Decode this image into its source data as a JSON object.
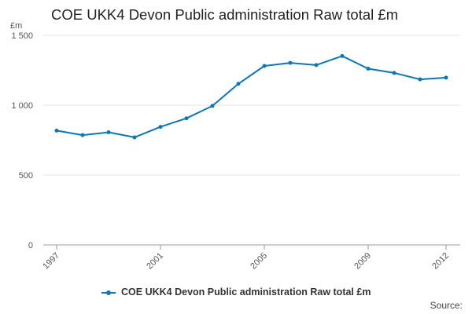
{
  "chart_data": {
    "type": "line",
    "title": "COE UKK4 Devon Public administration Raw total £m",
    "ylabel": "£m",
    "ylim": [
      0,
      1500
    ],
    "yticks": [
      "0",
      "500",
      "1 000",
      "1 500"
    ],
    "xticks": [
      "1997",
      "2001",
      "2005",
      "2009",
      "2012"
    ],
    "xlim": [
      1997,
      2012
    ],
    "grid": true,
    "legend_position": "bottom",
    "series": [
      {
        "name": "COE UKK4 Devon Public administration Raw total £m",
        "color": "#0b77b8",
        "x": [
          1997,
          1998,
          1999,
          2000,
          2001,
          2002,
          2003,
          2004,
          2005,
          2006,
          2007,
          2008,
          2009,
          2010,
          2011,
          2012
        ],
        "values": [
          818,
          786,
          806,
          770,
          845,
          906,
          995,
          1153,
          1281,
          1303,
          1287,
          1352,
          1261,
          1231,
          1185,
          1197
        ]
      }
    ]
  },
  "source_label": "Source:"
}
